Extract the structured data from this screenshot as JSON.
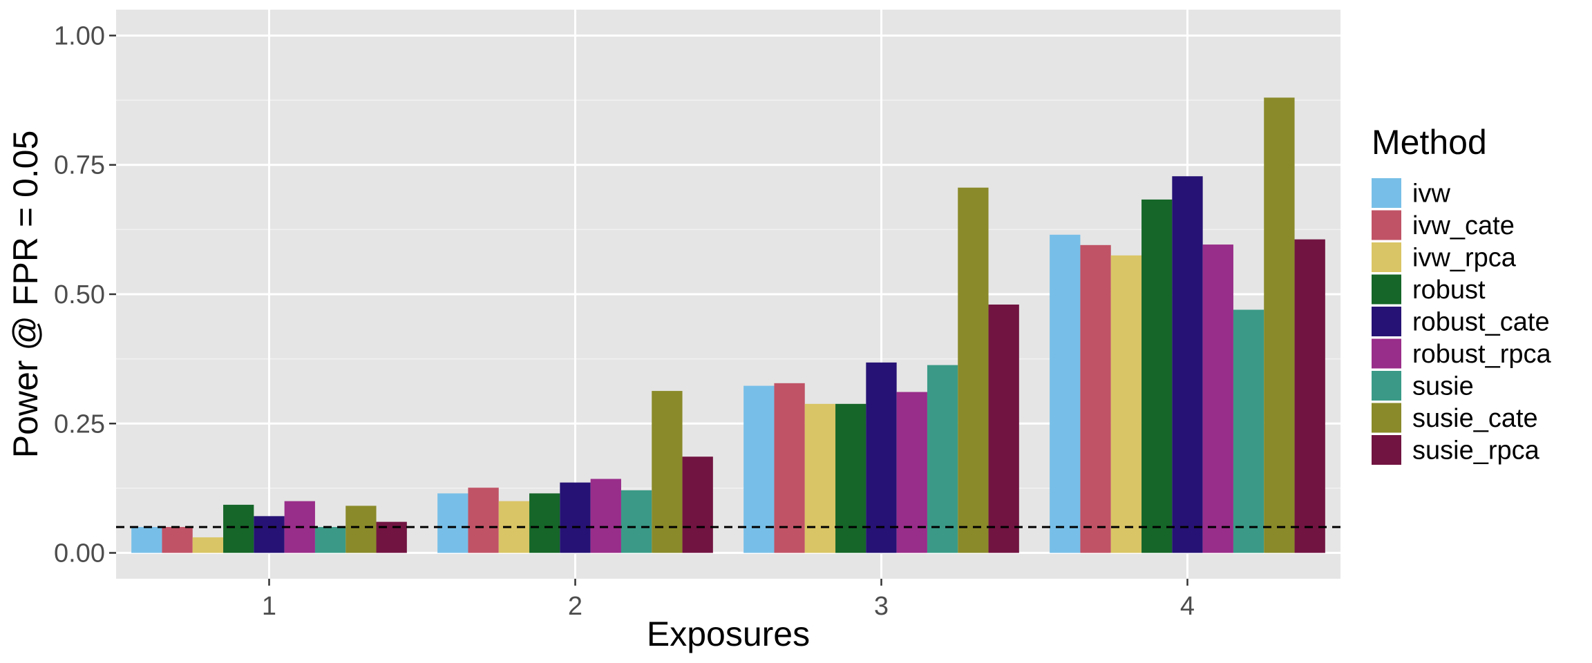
{
  "chart_data": {
    "type": "bar",
    "categories": [
      "1",
      "2",
      "3",
      "4"
    ],
    "xlabel": "Exposures",
    "ylabel": "Power @ FPR = 0.05",
    "ylim": [
      -0.05,
      1.05
    ],
    "yticks": [
      0.0,
      0.25,
      0.5,
      0.75,
      1.0
    ],
    "ytick_labels": [
      "0.00",
      "0.25",
      "0.50",
      "0.75",
      "1.00"
    ],
    "reference_line": {
      "y": 0.05,
      "style": "dashed"
    },
    "legend": {
      "title": "Method",
      "position": "right"
    },
    "grid": true,
    "series": [
      {
        "name": "ivw",
        "color": "#77BFE8",
        "values": [
          0.05,
          0.115,
          0.323,
          0.615
        ]
      },
      {
        "name": "ivw_cate",
        "color": "#C05366",
        "values": [
          0.05,
          0.126,
          0.328,
          0.595
        ]
      },
      {
        "name": "ivw_rpca",
        "color": "#D9C565",
        "values": [
          0.03,
          0.1,
          0.288,
          0.575
        ]
      },
      {
        "name": "robust",
        "color": "#156628",
        "values": [
          0.093,
          0.115,
          0.288,
          0.683
        ]
      },
      {
        "name": "robust_cate",
        "color": "#261275",
        "values": [
          0.071,
          0.136,
          0.368,
          0.728
        ]
      },
      {
        "name": "robust_rpca",
        "color": "#992D8A",
        "values": [
          0.1,
          0.143,
          0.311,
          0.596
        ]
      },
      {
        "name": "susie",
        "color": "#3A9A87",
        "values": [
          0.05,
          0.121,
          0.363,
          0.47
        ]
      },
      {
        "name": "susie_cate",
        "color": "#8A8A2A",
        "values": [
          0.091,
          0.313,
          0.706,
          0.88
        ]
      },
      {
        "name": "susie_rpca",
        "color": "#711441",
        "values": [
          0.06,
          0.186,
          0.48,
          0.606
        ]
      }
    ]
  }
}
